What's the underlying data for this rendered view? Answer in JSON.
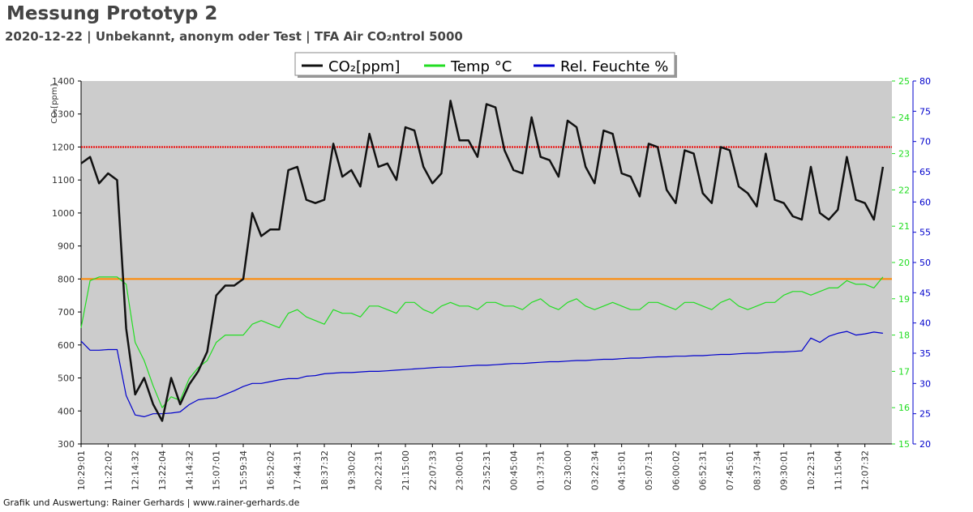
{
  "chart_data": {
    "type": "line",
    "title": "Messung Prototyp 2",
    "subtitle": "2020-12-22 | Unbekannt, anonym oder Test | TFA Air CO₂ntrol 5000",
    "ylabel": "CO₂[ppm]",
    "footer": "Grafik und Auswertung: Rainer Gerhards | www.rainer-gerhards.de",
    "categories": [
      "10:29:01",
      null,
      null,
      "11:22:02",
      null,
      null,
      "12:14:32",
      null,
      null,
      "13:22:04",
      null,
      null,
      "14:14:32",
      null,
      null,
      "15:07:01",
      null,
      null,
      "15:59:34",
      null,
      null,
      "16:52:02",
      null,
      null,
      "17:44:31",
      null,
      null,
      "18:37:32",
      null,
      null,
      "19:30:02",
      null,
      null,
      "20:22:31",
      null,
      null,
      "21:15:00",
      null,
      null,
      "22:07:33",
      null,
      null,
      "23:00:01",
      null,
      null,
      "23:52:31",
      null,
      null,
      "00:45:04",
      null,
      null,
      "01:37:31",
      null,
      null,
      "02:30:00",
      null,
      null,
      "03:22:34",
      null,
      null,
      "04:15:01",
      null,
      null,
      "05:07:31",
      null,
      null,
      "06:00:02",
      null,
      null,
      "06:52:31",
      null,
      null,
      "07:45:01",
      null,
      null,
      "08:37:34",
      null,
      null,
      "09:30:01",
      null,
      null,
      "10:22:31",
      null,
      null,
      "11:15:04",
      null,
      null,
      "12:07:32",
      null,
      null
    ],
    "series": [
      {
        "name": "CO₂[ppm]",
        "color": "#111111",
        "axis": "y",
        "values": [
          1150,
          1170,
          1090,
          1120,
          1100,
          650,
          450,
          500,
          420,
          370,
          500,
          420,
          480,
          520,
          580,
          750,
          780,
          780,
          800,
          1000,
          930,
          950,
          950,
          1130,
          1140,
          1040,
          1030,
          1040,
          1210,
          1110,
          1130,
          1080,
          1240,
          1140,
          1150,
          1100,
          1260,
          1250,
          1140,
          1090,
          1120,
          1340,
          1220,
          1220,
          1170,
          1330,
          1320,
          1190,
          1130,
          1120,
          1290,
          1170,
          1160,
          1110,
          1280,
          1260,
          1140,
          1090,
          1250,
          1240,
          1120,
          1110,
          1050,
          1210,
          1200,
          1070,
          1030,
          1190,
          1180,
          1060,
          1030,
          1200,
          1190,
          1080,
          1060,
          1020,
          1180,
          1040,
          1030,
          990,
          980,
          1140,
          1000,
          980,
          1010,
          1170,
          1040,
          1030,
          980,
          1140
        ]
      },
      {
        "name": "Temp °C",
        "color": "#22dd22",
        "axis": "y2",
        "values": [
          18.2,
          19.5,
          19.6,
          19.6,
          19.6,
          19.4,
          17.8,
          17.3,
          16.6,
          16.0,
          16.3,
          16.2,
          16.8,
          17.1,
          17.3,
          17.8,
          18.0,
          18.0,
          18.0,
          18.3,
          18.4,
          18.3,
          18.2,
          18.6,
          18.7,
          18.5,
          18.4,
          18.3,
          18.7,
          18.6,
          18.6,
          18.5,
          18.8,
          18.8,
          18.7,
          18.6,
          18.9,
          18.9,
          18.7,
          18.6,
          18.8,
          18.9,
          18.8,
          18.8,
          18.7,
          18.9,
          18.9,
          18.8,
          18.8,
          18.7,
          18.9,
          19.0,
          18.8,
          18.7,
          18.9,
          19.0,
          18.8,
          18.7,
          18.8,
          18.9,
          18.8,
          18.7,
          18.7,
          18.9,
          18.9,
          18.8,
          18.7,
          18.9,
          18.9,
          18.8,
          18.7,
          18.9,
          19.0,
          18.8,
          18.7,
          18.8,
          18.9,
          18.9,
          19.1,
          19.2,
          19.2,
          19.1,
          19.2,
          19.3,
          19.3,
          19.5,
          19.4,
          19.4,
          19.3,
          19.6
        ]
      },
      {
        "name": "Rel. Feuchte %",
        "color": "#0000cc",
        "axis": "y3",
        "values": [
          37,
          35.5,
          35.5,
          35.6,
          35.6,
          28,
          24.8,
          24.5,
          25,
          25,
          25.1,
          25.3,
          26.5,
          27.3,
          27.5,
          27.6,
          28.2,
          28.8,
          29.5,
          30,
          30,
          30.3,
          30.6,
          30.8,
          30.8,
          31.2,
          31.3,
          31.6,
          31.7,
          31.8,
          31.8,
          31.9,
          32,
          32,
          32.1,
          32.2,
          32.3,
          32.4,
          32.5,
          32.6,
          32.7,
          32.7,
          32.8,
          32.9,
          33,
          33,
          33.1,
          33.2,
          33.3,
          33.3,
          33.4,
          33.5,
          33.6,
          33.6,
          33.7,
          33.8,
          33.8,
          33.9,
          34,
          34,
          34.1,
          34.2,
          34.2,
          34.3,
          34.4,
          34.4,
          34.5,
          34.5,
          34.6,
          34.6,
          34.7,
          34.8,
          34.8,
          34.9,
          35,
          35,
          35.1,
          35.2,
          35.2,
          35.3,
          35.4,
          37.5,
          36.8,
          37.8,
          38.3,
          38.6,
          38.0,
          38.2,
          38.5,
          38.3
        ]
      }
    ],
    "reference_lines": [
      {
        "value": 1200,
        "color": "#ee0000",
        "style": "dotted"
      },
      {
        "value": 800,
        "color": "#ff8800",
        "style": "solid"
      }
    ],
    "ylim": [
      300,
      1400
    ],
    "yticks": [
      300,
      400,
      500,
      600,
      700,
      800,
      900,
      1000,
      1100,
      1200,
      1300,
      1400
    ],
    "y2lim": [
      15,
      25
    ],
    "y2ticks": [
      15,
      16,
      17,
      18,
      19,
      20,
      21,
      22,
      23,
      24,
      25
    ],
    "y2color": "#22dd22",
    "y3lim": [
      20,
      80
    ],
    "y3ticks": [
      20,
      25,
      30,
      35,
      40,
      45,
      50,
      55,
      60,
      65,
      70,
      75,
      80
    ],
    "y3color": "#0000cc",
    "legend": "top"
  }
}
